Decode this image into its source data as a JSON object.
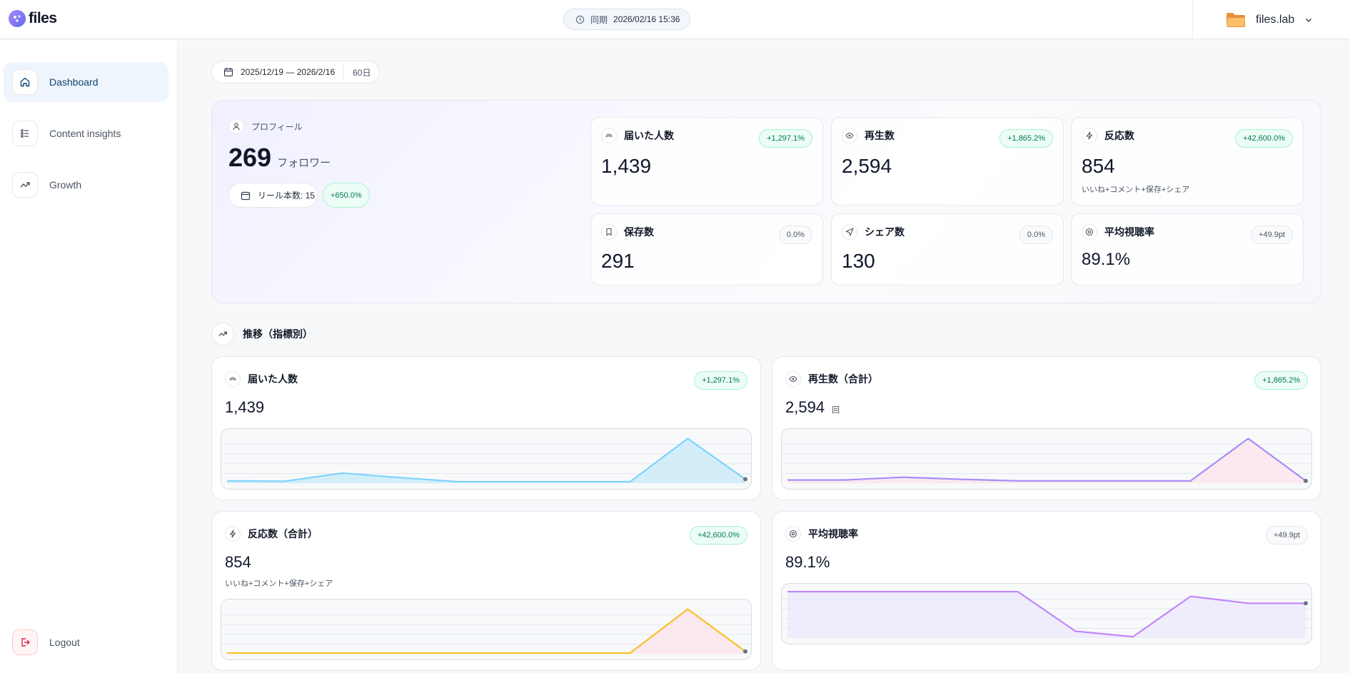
{
  "app": {
    "logo_text": "files"
  },
  "sync": {
    "label": "同期",
    "value": "2026/02/16 15:36"
  },
  "user": {
    "name": "files.lab"
  },
  "sidebar": {
    "items": [
      {
        "label": "Dashboard"
      },
      {
        "label": "Content insights"
      },
      {
        "label": "Growth"
      }
    ],
    "logout": "Logout"
  },
  "date_range": {
    "range": "2025/12/19 — 2026/2/16",
    "days": "60日"
  },
  "profile": {
    "label": "プロフィール",
    "followers": "269",
    "followers_unit": "フォロワー",
    "reels": "リール本数: 15",
    "reels_change": "+650.0%"
  },
  "metrics": [
    {
      "label": "届いた人数",
      "value": "1,439",
      "change": "+1,297.1%",
      "tone": "positive"
    },
    {
      "label": "再生数",
      "value": "2,594",
      "change": "+1,865.2%",
      "tone": "positive"
    },
    {
      "label": "反応数",
      "value": "854",
      "change": "+42,600.0%",
      "tone": "positive",
      "sub": "いいね+コメント+保存+シェア"
    },
    {
      "label": "保存数",
      "value": "291",
      "change": "0.0%",
      "tone": "neutral"
    },
    {
      "label": "シェア数",
      "value": "130",
      "change": "0.0%",
      "tone": "neutral"
    },
    {
      "label": "平均視聴率",
      "value": "89.1%",
      "change": "+49.9pt",
      "tone": "neutral"
    }
  ],
  "trend_title": "推移（指標別）",
  "colors": {
    "reach": "#7dd3fc",
    "plays": "#a78bfa",
    "reactions": "#fbbf24",
    "watch": "#c084fc"
  },
  "chart_data": [
    {
      "type": "area",
      "title": "届いた人数",
      "value": "1,439",
      "change": "+1,297.1%",
      "series": [
        {
          "name": "届いた人数",
          "values": [
            6,
            5,
            25,
            14,
            4,
            4,
            4,
            4,
            110,
            10
          ]
        }
      ],
      "ylim": [
        0,
        120
      ]
    },
    {
      "type": "area",
      "title": "再生数（合計）",
      "value": "2,594",
      "unit": "回",
      "change": "+1,865.2%",
      "series": [
        {
          "name": "再生数",
          "values": [
            8,
            8,
            15,
            10,
            6,
            6,
            6,
            6,
            110,
            6
          ]
        }
      ],
      "ylim": [
        0,
        120
      ]
    },
    {
      "type": "area",
      "title": "反応数（合計）",
      "value": "854",
      "change": "+42,600.0%",
      "sub": "いいね+コメント+保存+シェア",
      "series": [
        {
          "name": "反応数",
          "values": [
            2,
            2,
            2,
            2,
            2,
            2,
            2,
            2,
            110,
            6
          ]
        }
      ],
      "ylim": [
        0,
        120
      ]
    },
    {
      "type": "area",
      "title": "平均視聴率",
      "value": "89.1%",
      "change": "+49.9pt",
      "series": [
        {
          "name": "平均視聴率",
          "values": [
            100,
            100,
            100,
            100,
            100,
            15,
            3,
            90,
            75,
            75
          ]
        }
      ],
      "ylim": [
        0,
        105
      ]
    }
  ]
}
